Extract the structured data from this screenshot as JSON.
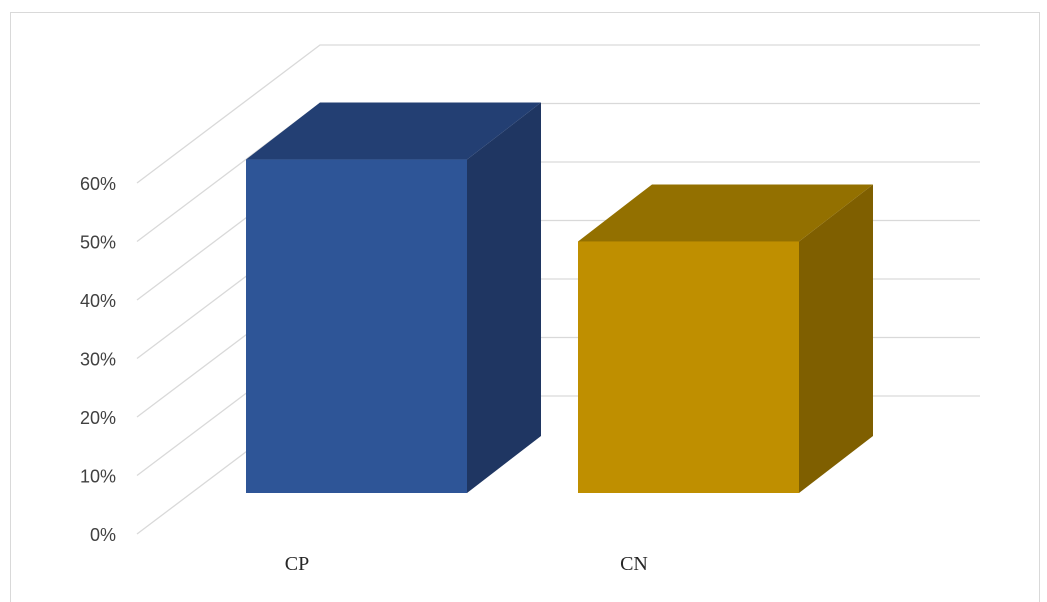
{
  "chart_data": {
    "type": "bar",
    "view": "3d-column",
    "categories": [
      "CP",
      "CN"
    ],
    "values": [
      0.57,
      0.43
    ],
    "ylim": [
      0,
      0.6
    ],
    "yticks": [
      0,
      0.1,
      0.2,
      0.3,
      0.4,
      0.5,
      0.6
    ],
    "ytick_labels": [
      "0%",
      "10%",
      "20%",
      "30%",
      "40%",
      "50%",
      "60%"
    ],
    "title": "",
    "xlabel": "",
    "ylabel": "",
    "grid": true,
    "legend": "none",
    "colors": {
      "bars": [
        "#2e5597",
        "#bf8f00"
      ],
      "bar_tops": [
        "#233f73",
        "#937000"
      ],
      "bar_sides": [
        "#1f3662",
        "#7f5f00"
      ],
      "grid": "#d9d9d9",
      "tick_text": "#404040",
      "category_text": "#262626"
    }
  }
}
